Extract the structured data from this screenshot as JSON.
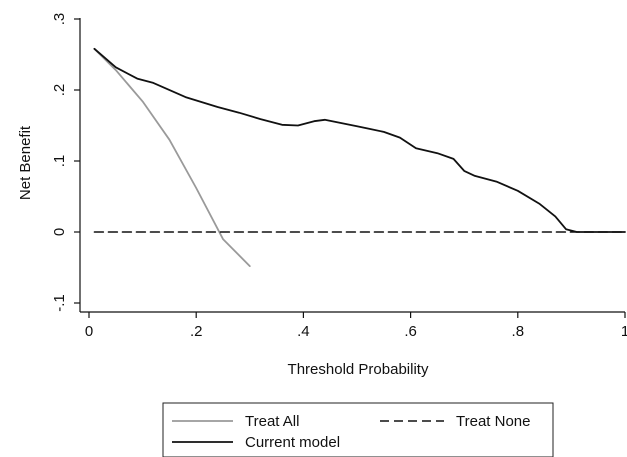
{
  "chart_data": {
    "type": "line",
    "xlabel": "Threshold Probability",
    "ylabel": "Net Benefit",
    "xlim": [
      0,
      1
    ],
    "ylim": [
      -0.1,
      0.3
    ],
    "xticks": [
      {
        "value": 0,
        "label": "0"
      },
      {
        "value": 0.2,
        "label": ".2"
      },
      {
        "value": 0.4,
        "label": ".4"
      },
      {
        "value": 0.6,
        "label": ".6"
      },
      {
        "value": 0.8,
        "label": ".8"
      },
      {
        "value": 1,
        "label": "1"
      }
    ],
    "yticks": [
      {
        "value": -0.1,
        "label": "-.1"
      },
      {
        "value": 0,
        "label": "0"
      },
      {
        "value": 0.1,
        "label": ".1"
      },
      {
        "value": 0.2,
        "label": ".2"
      },
      {
        "value": 0.3,
        "label": ".3"
      }
    ],
    "grid": false,
    "legend_position": "bottom",
    "series": [
      {
        "name": "Treat All",
        "color": "#9a9a9a",
        "dash": "solid",
        "x": [
          0.01,
          0.05,
          0.1,
          0.15,
          0.2,
          0.25,
          0.3
        ],
        "y": [
          0.258,
          0.228,
          0.184,
          0.13,
          0.062,
          -0.01,
          -0.048
        ]
      },
      {
        "name": "Treat None",
        "color": "#111111",
        "dash": "dashed",
        "x": [
          0.01,
          1.0
        ],
        "y": [
          0,
          0
        ]
      },
      {
        "name": "Current model",
        "color": "#111111",
        "dash": "solid",
        "x": [
          0.01,
          0.05,
          0.09,
          0.12,
          0.18,
          0.24,
          0.28,
          0.32,
          0.36,
          0.39,
          0.42,
          0.44,
          0.5,
          0.55,
          0.58,
          0.61,
          0.65,
          0.68,
          0.7,
          0.72,
          0.76,
          0.8,
          0.84,
          0.87,
          0.89,
          0.91,
          0.95,
          1.0
        ],
        "y": [
          0.258,
          0.232,
          0.216,
          0.21,
          0.19,
          0.176,
          0.168,
          0.159,
          0.151,
          0.15,
          0.156,
          0.158,
          0.149,
          0.141,
          0.133,
          0.118,
          0.111,
          0.103,
          0.086,
          0.079,
          0.071,
          0.058,
          0.04,
          0.022,
          0.004,
          0.0,
          0.0,
          0.0
        ]
      }
    ]
  }
}
